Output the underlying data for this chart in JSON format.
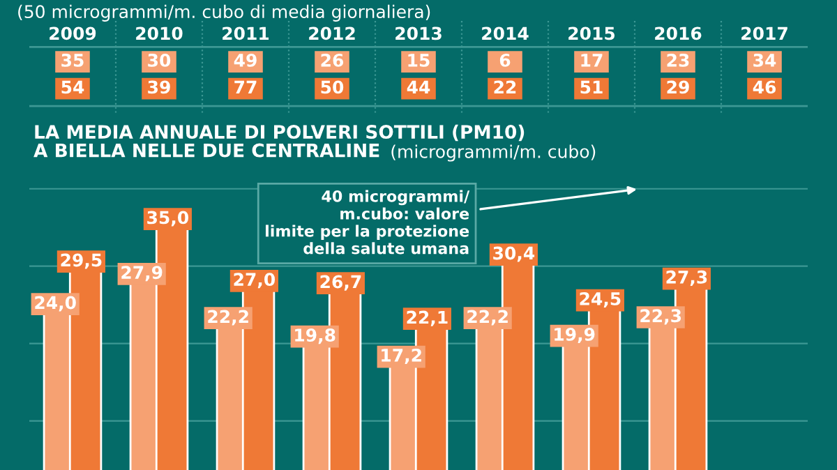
{
  "chart_data": [
    {
      "type": "heatmap",
      "subtitle": "(50 microgrammi/m. cubo di media giornaliera)",
      "categories": [
        "2009",
        "2010",
        "2011",
        "2012",
        "2013",
        "2014",
        "2015",
        "2016",
        "2017"
      ],
      "y_categories": [
        null,
        null
      ],
      "colors": [
        "#f6a172",
        "#ef7936"
      ],
      "cells": [
        [
          35,
          30,
          49,
          26,
          15,
          6,
          17,
          23,
          34
        ],
        [
          54,
          39,
          77,
          50,
          44,
          22,
          51,
          29,
          46
        ]
      ],
      "data_labels": true
    },
    {
      "type": "bar",
      "title": "LA MEDIA ANNUALE DI POLVERI SOTTILI (PM10)\nA BIELLA NELLE DUE CENTRALINE",
      "subtitle": "(microgrammi/m. cubo)",
      "categories": [
        null,
        null,
        null,
        null,
        null,
        null,
        null,
        null,
        null
      ],
      "series": [
        {
          "color": "#f6a172",
          "values": [
            24.0,
            27.9,
            22.2,
            19.8,
            17.2,
            22.2,
            19.9,
            22.3,
            null
          ],
          "value_labels": [
            "24,0",
            "27,9",
            "22,2",
            "19,8",
            "17,2",
            "22,2",
            "19,9",
            "22,3",
            null
          ]
        },
        {
          "color": "#ef7936",
          "values": [
            29.5,
            35.0,
            27.0,
            26.7,
            22.1,
            30.4,
            24.5,
            27.3,
            null
          ],
          "value_labels": [
            "29,5",
            "35,0",
            "27,0",
            "26,7",
            "22,1",
            "30,4",
            "24,5",
            "27,3",
            null
          ]
        }
      ],
      "ref_lines": [
        {
          "axis": "y",
          "value": 10
        },
        {
          "axis": "y",
          "value": 20
        },
        {
          "axis": "y",
          "value": 30
        },
        {
          "axis": "y",
          "value": 40,
          "label": "40 microgrammi/\nm.cubo: valore\nlimite per la protezione\ndella salute umana"
        }
      ]
    }
  ]
}
